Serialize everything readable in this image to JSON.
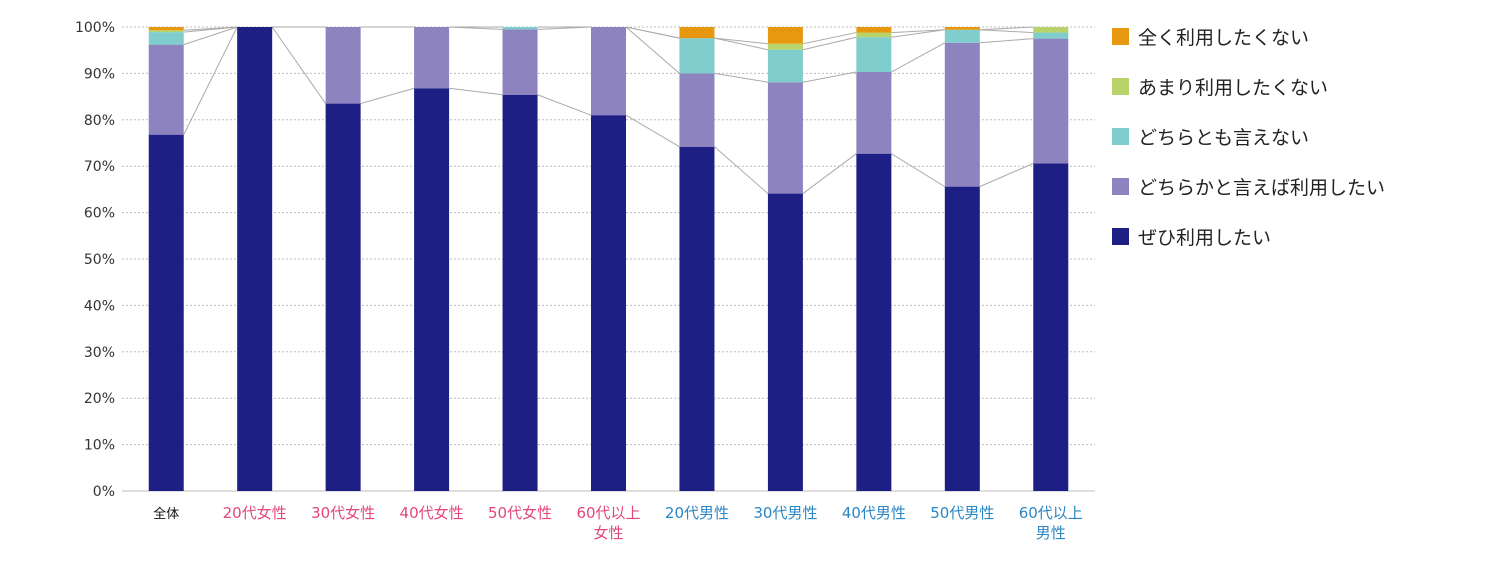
{
  "chart_data": {
    "type": "bar",
    "stacked": true,
    "percent": true,
    "categories": [
      "全体",
      "20代女性",
      "30代女性",
      "40代女性",
      "50代女性",
      "60代以上女性",
      "20代男性",
      "30代男性",
      "40代男性",
      "50代男性",
      "60代以上男性"
    ],
    "category_lines": [
      [
        "全体"
      ],
      [
        "20代女性"
      ],
      [
        "30代女性"
      ],
      [
        "40代女性"
      ],
      [
        "50代女性"
      ],
      [
        "60代以上",
        "女性"
      ],
      [
        "20代男性"
      ],
      [
        "30代男性"
      ],
      [
        "40代男性"
      ],
      [
        "50代男性"
      ],
      [
        "60代以上",
        "男性"
      ]
    ],
    "category_groups": [
      "total",
      "female",
      "female",
      "female",
      "female",
      "female",
      "male",
      "male",
      "male",
      "male",
      "male"
    ],
    "series": [
      {
        "name": "ぜひ利用したい",
        "color": "#1e1f85",
        "values": [
          76.8,
          100,
          83.5,
          86.8,
          85.4,
          81.0,
          74.2,
          64.1,
          72.7,
          65.6,
          70.6
        ]
      },
      {
        "name": "どちらかと言えば利用したい",
        "color": "#8d84bf",
        "values": [
          19.4,
          0,
          16.5,
          13.2,
          14.1,
          19.0,
          15.8,
          24.0,
          17.6,
          31.0,
          26.9
        ]
      },
      {
        "name": "どちらとも言えない",
        "color": "#7fcdcc",
        "values": [
          2.7,
          0,
          0,
          0,
          0.5,
          0,
          7.6,
          7.0,
          7.5,
          2.8,
          1.3
        ]
      },
      {
        "name": "あまり利用したくない",
        "color": "#b7d36a",
        "values": [
          0.4,
          0,
          0,
          0,
          0,
          0,
          0,
          1.3,
          1.0,
          0,
          1.2
        ]
      },
      {
        "name": "全く利用したくない",
        "color": "#e8980f",
        "values": [
          0.7,
          0,
          0,
          0,
          0,
          0,
          2.4,
          3.6,
          1.2,
          0.6,
          0
        ]
      }
    ],
    "ylim": [
      0,
      100
    ],
    "yticks": [
      "0%",
      "10%",
      "20%",
      "30%",
      "40%",
      "50%",
      "60%",
      "70%",
      "80%",
      "90%",
      "100%"
    ],
    "legend_position": "right",
    "title": "",
    "xlabel": "",
    "ylabel": ""
  },
  "colors": {
    "total_label": "#111111",
    "female_label": "#e2467f",
    "male_label": "#2a86c4",
    "grid": "#bdbdbd",
    "connector": "#aaaaaa"
  }
}
